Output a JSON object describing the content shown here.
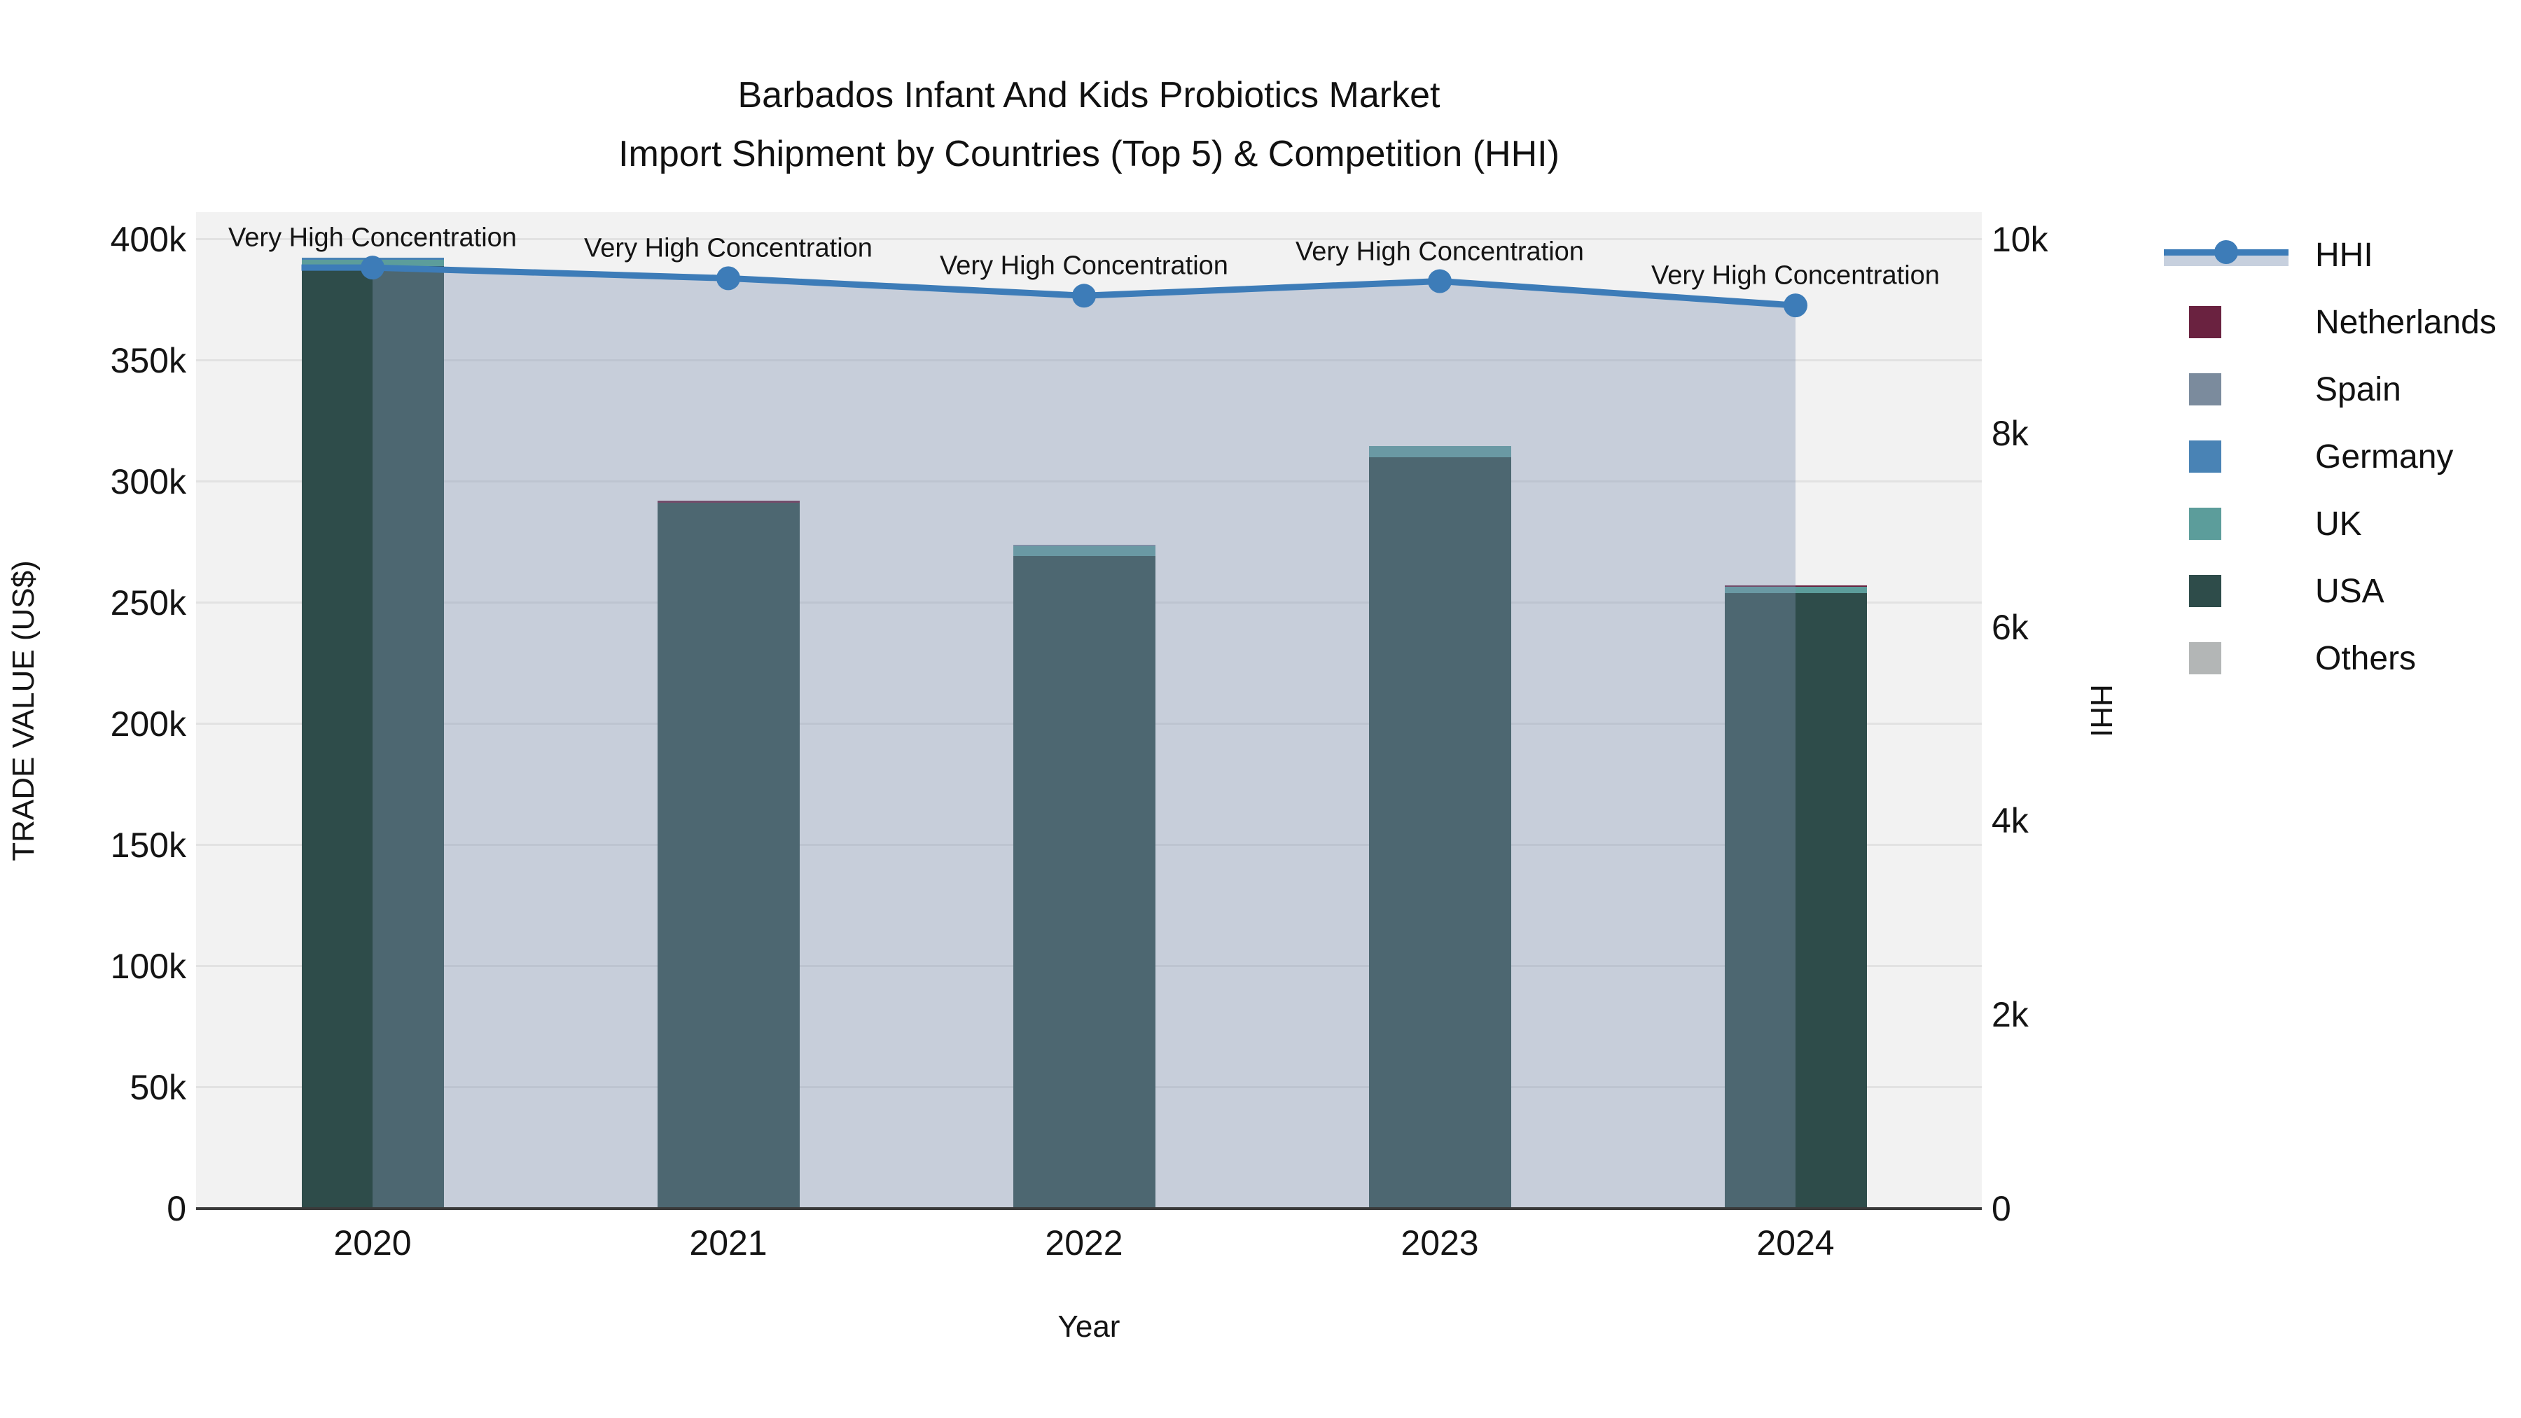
{
  "title": {
    "line1": "Barbados Infant And Kids Probiotics Market",
    "line2": "Import Shipment by Countries (Top 5) & Competition (HHI)"
  },
  "axes": {
    "left": {
      "label": "TRADE VALUE (US$)",
      "ticks": [
        "0",
        "50k",
        "100k",
        "150k",
        "200k",
        "250k",
        "300k",
        "350k",
        "400k"
      ],
      "tick_values": [
        0,
        50000,
        100000,
        150000,
        200000,
        250000,
        300000,
        350000,
        400000
      ],
      "max": 411270
    },
    "right": {
      "label": "HHI",
      "ticks": [
        "0",
        "2k",
        "4k",
        "6k",
        "8k",
        "10k"
      ],
      "tick_values": [
        0,
        2000,
        4000,
        6000,
        8000,
        10000
      ],
      "max": 10282
    },
    "x": {
      "label": "Year",
      "ticks": [
        "2020",
        "2021",
        "2022",
        "2023",
        "2024"
      ]
    }
  },
  "legend": {
    "items": [
      {
        "label": "HHI",
        "type": "line",
        "color": "#3d7cb8"
      },
      {
        "label": "Netherlands",
        "type": "swatch",
        "color": "#6a2240"
      },
      {
        "label": "Spain",
        "type": "swatch",
        "color": "#7b8b9d"
      },
      {
        "label": "Germany",
        "type": "swatch",
        "color": "#4983b5"
      },
      {
        "label": "UK",
        "type": "swatch",
        "color": "#5c9d9b"
      },
      {
        "label": "USA",
        "type": "swatch",
        "color": "#2e4c4a"
      },
      {
        "label": "Others",
        "type": "swatch",
        "color": "#b3b6b6"
      }
    ]
  },
  "chart_data": {
    "type": "bar+line",
    "title": "Barbados Infant And Kids Probiotics Market — Import Shipment by Countries (Top 5) & Competition (HHI)",
    "categories": [
      "2020",
      "2021",
      "2022",
      "2023",
      "2024"
    ],
    "bar_unit": "US$",
    "stack_order_bottom_to_top": [
      "USA",
      "UK",
      "Germany",
      "Spain",
      "Netherlands",
      "Others"
    ],
    "series": [
      {
        "name": "Netherlands",
        "color": "#6a2240",
        "values": [
          0,
          1000,
          0,
          0,
          500
        ]
      },
      {
        "name": "Spain",
        "color": "#7b8b9d",
        "values": [
          0,
          0,
          500,
          0,
          0
        ]
      },
      {
        "name": "Germany",
        "color": "#4983b5",
        "values": [
          1000,
          0,
          0,
          0,
          0
        ]
      },
      {
        "name": "UK",
        "color": "#5c9d9b",
        "values": [
          2500,
          0,
          4000,
          4500,
          2700
        ]
      },
      {
        "name": "USA",
        "color": "#2e4c4a",
        "values": [
          389000,
          291200,
          269500,
          310200,
          254000
        ]
      },
      {
        "name": "Others",
        "color": "#b3b6b6",
        "values": [
          0,
          0,
          0,
          0,
          0
        ]
      }
    ],
    "bar_totals_approx": [
      392500,
      292200,
      274000,
      314700,
      257200
    ],
    "hhi": {
      "name": "HHI",
      "color": "#3d7cb8",
      "area_fill": "rgba(130,148,178,0.38)",
      "values": [
        9710,
        9600,
        9420,
        9570,
        9320
      ],
      "axis": "right"
    },
    "annotations": [
      {
        "year": "2020",
        "text": "Very High Concentration"
      },
      {
        "year": "2021",
        "text": "Very High Concentration"
      },
      {
        "year": "2022",
        "text": "Very High Concentration"
      },
      {
        "year": "2023",
        "text": "Very High Concentration"
      },
      {
        "year": "2024",
        "text": "Very High Concentration"
      }
    ],
    "ylim_left": [
      0,
      411270
    ],
    "ylim_right": [
      0,
      10282
    ],
    "grid": true,
    "legend_position": "right"
  }
}
